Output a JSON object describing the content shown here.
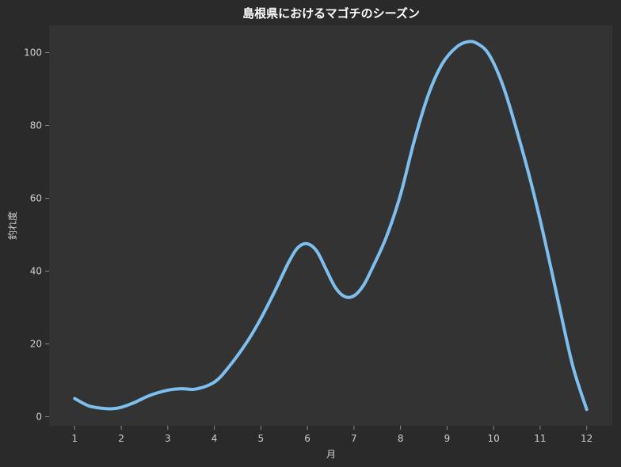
{
  "chart_data": {
    "type": "line",
    "title": "島根県におけるマゴチのシーズン",
    "xlabel": "月",
    "ylabel": "釣れ度",
    "xlim": [
      0.45,
      12.55
    ],
    "ylim": [
      -2.5,
      107.5
    ],
    "xticks": [
      "1",
      "2",
      "3",
      "4",
      "5",
      "6",
      "7",
      "8",
      "9",
      "10",
      "11",
      "12"
    ],
    "yticks": [
      0,
      20,
      40,
      60,
      80,
      100
    ],
    "grid": false,
    "legend": "none",
    "series": [
      {
        "x": [
          1,
          1.3,
          1.6,
          1.8,
          2.0,
          2.3,
          2.6,
          3.0,
          3.3,
          3.6,
          4.0,
          4.3,
          4.7,
          5.0,
          5.3,
          5.6,
          5.8,
          6.0,
          6.2,
          6.4,
          6.6,
          6.8,
          7.0,
          7.2,
          7.4,
          7.7,
          8.0,
          8.3,
          8.6,
          8.9,
          9.2,
          9.45,
          9.65,
          9.9,
          10.2,
          10.5,
          10.8,
          11.1,
          11.4,
          11.7,
          12.0
        ],
        "y": [
          5,
          3,
          2.3,
          2.2,
          2.6,
          4,
          5.8,
          7.3,
          7.7,
          7.6,
          9.5,
          13.5,
          20.5,
          27,
          34.5,
          42.5,
          46.5,
          47.5,
          45.5,
          40.5,
          35.5,
          33,
          33.2,
          36,
          41,
          49.5,
          61,
          76,
          88.5,
          97,
          101.5,
          103,
          102.5,
          99.5,
          91,
          78.5,
          64.5,
          48.5,
          31,
          14,
          2
        ]
      }
    ],
    "colors": {
      "line": "#7dc0f0",
      "plot_bg": "#333333",
      "fig_bg": "#2a2a2a",
      "axis": "#888888"
    }
  }
}
